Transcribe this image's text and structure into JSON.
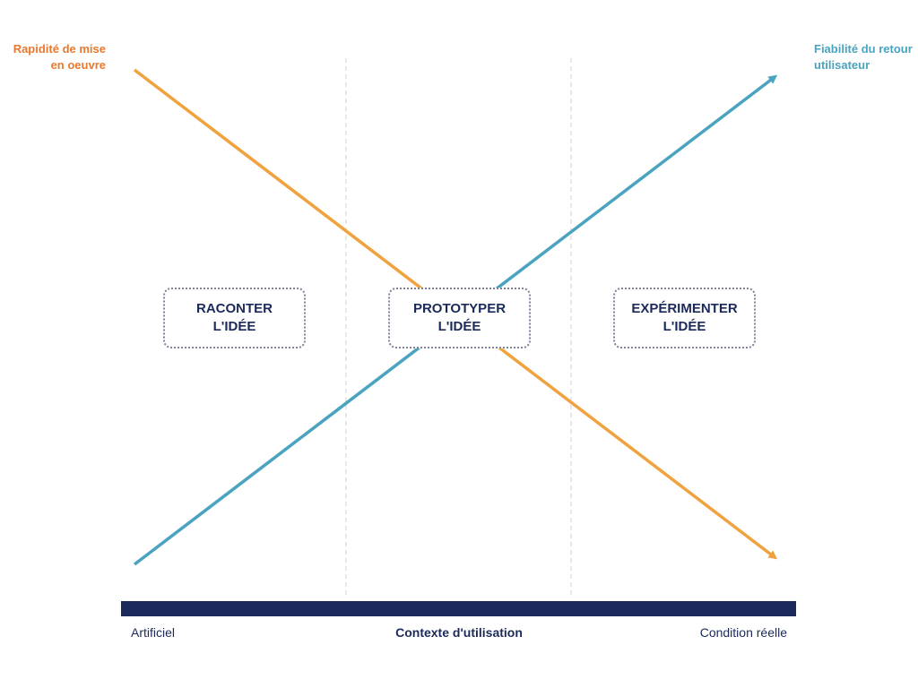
{
  "left_axis_label": "Rapidité de mise en oeuvre",
  "right_axis_label": "Fiabilité du retour utilisateur",
  "stages": [
    {
      "line1": "RACONTER",
      "line2": "L'IDÉE"
    },
    {
      "line1": "PROTOTYPER",
      "line2": "L'IDÉE"
    },
    {
      "line1": "EXPÉRIMENTER",
      "line2": "L'IDÉE"
    }
  ],
  "x_axis": {
    "start": "Artificiel",
    "title": "Contexte d'utilisation",
    "end": "Condition réelle"
  },
  "colors": {
    "speed": "#F0A23E",
    "reliability": "#4AA3BF",
    "navy": "#1B2A5A"
  }
}
